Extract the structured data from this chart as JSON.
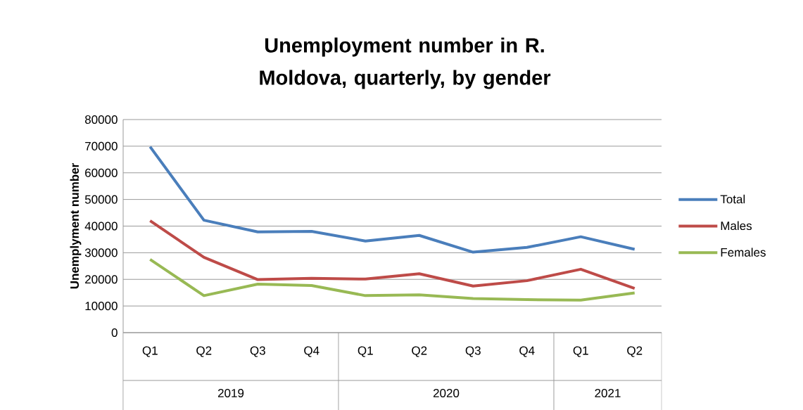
{
  "chart_data": {
    "type": "line",
    "title": "Unemployment number in R. Moldova, quarterly, by gender",
    "ylabel": "Unemplyment number",
    "categories": [
      "Q1",
      "Q2",
      "Q3",
      "Q4",
      "Q1",
      "Q2",
      "Q3",
      "Q4",
      "Q1",
      "Q2"
    ],
    "annotations": [
      "2019",
      "2020",
      "2021"
    ],
    "series": [
      {
        "name": "Total",
        "color": "#4a7ebb",
        "values": [
          69800,
          42200,
          37800,
          38000,
          34400,
          36500,
          30200,
          32000,
          36000,
          31300
        ]
      },
      {
        "name": "Males",
        "color": "#be4b48",
        "values": [
          42000,
          28300,
          19900,
          20400,
          20100,
          22100,
          17500,
          19500,
          23800,
          16600
        ]
      },
      {
        "name": "Females",
        "color": "#98b954",
        "values": [
          27500,
          13900,
          18200,
          17700,
          13900,
          14200,
          12800,
          12400,
          12200,
          14900
        ]
      }
    ],
    "ylim": [
      0,
      80000
    ],
    "yticks": [
      0,
      10000,
      20000,
      30000,
      40000,
      50000,
      60000,
      70000,
      80000
    ],
    "grid": "y",
    "legend": "right",
    "marker": "none",
    "line_style": "solid"
  }
}
